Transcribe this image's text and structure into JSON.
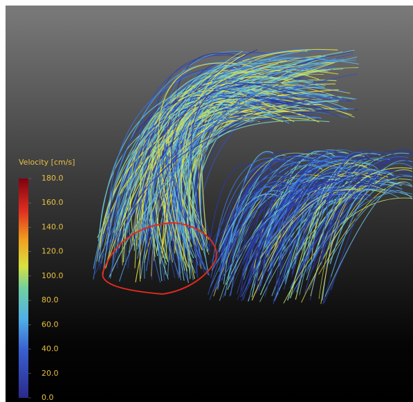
{
  "colorbar": {
    "title": "Velocity [cm/s]",
    "ticks": [
      {
        "value": 180,
        "label": "180.0"
      },
      {
        "value": 160,
        "label": "160.0"
      },
      {
        "value": 140,
        "label": "140.0"
      },
      {
        "value": 120,
        "label": "120.0"
      },
      {
        "value": 100,
        "label": "100.0"
      },
      {
        "value": 80,
        "label": "80.0"
      },
      {
        "value": 60,
        "label": "60.0"
      },
      {
        "value": 40,
        "label": "40.0"
      },
      {
        "value": 20,
        "label": "20.0"
      },
      {
        "value": 0,
        "label": "0.0"
      }
    ]
  }
}
